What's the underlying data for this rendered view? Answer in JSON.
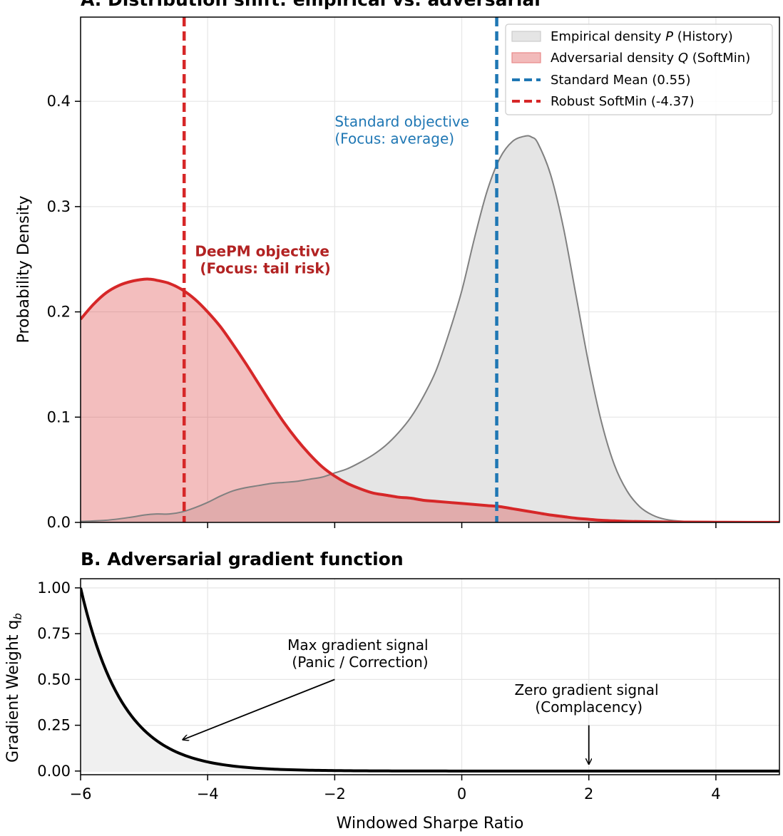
{
  "chart_data": [
    {
      "type": "area",
      "title": "A. Distribution shift: empirical vs. adversarial",
      "xlabel": "",
      "ylabel": "Probability Density",
      "xlim": [
        -6,
        5
      ],
      "ylim": [
        0,
        0.48
      ],
      "x_ticks": [
        -6,
        -4,
        -2,
        0,
        2,
        4
      ],
      "y_ticks": [
        0.0,
        0.1,
        0.2,
        0.3,
        0.4
      ],
      "y_tick_labels": [
        "0.0",
        "0.1",
        "0.2",
        "0.3",
        "0.4"
      ],
      "grid": true,
      "legend_position": "top-right",
      "series": [
        {
          "name": "Empirical density P (History)",
          "legend_parts": [
            "Empirical density ",
            "P",
            " (History)"
          ],
          "color": "#808080",
          "fill": "#e5e5e5",
          "x": [
            -6,
            -5.6,
            -5.2,
            -5.0,
            -4.8,
            -4.6,
            -4.4,
            -4.2,
            -4.0,
            -3.8,
            -3.6,
            -3.4,
            -3.2,
            -3.0,
            -2.8,
            -2.6,
            -2.4,
            -2.2,
            -2.0,
            -1.8,
            -1.6,
            -1.4,
            -1.2,
            -1.0,
            -0.8,
            -0.6,
            -0.4,
            -0.2,
            0.0,
            0.2,
            0.4,
            0.6,
            0.8,
            1.0,
            1.1,
            1.2,
            1.4,
            1.6,
            1.8,
            2.0,
            2.2,
            2.4,
            2.6,
            2.8,
            3.0,
            3.2,
            3.5,
            4.0,
            4.5,
            5.0
          ],
          "values": [
            0.001,
            0.002,
            0.005,
            0.007,
            0.008,
            0.008,
            0.01,
            0.014,
            0.019,
            0.025,
            0.03,
            0.033,
            0.035,
            0.037,
            0.038,
            0.039,
            0.041,
            0.043,
            0.047,
            0.051,
            0.057,
            0.064,
            0.073,
            0.085,
            0.1,
            0.12,
            0.145,
            0.18,
            0.22,
            0.27,
            0.315,
            0.346,
            0.362,
            0.367,
            0.366,
            0.36,
            0.33,
            0.28,
            0.215,
            0.15,
            0.095,
            0.055,
            0.03,
            0.015,
            0.007,
            0.003,
            0.001,
            0.0004,
            0.0002,
            0.0001
          ]
        },
        {
          "name": "Adversarial density Q (SoftMin)",
          "legend_parts": [
            "Adversarial density ",
            "Q",
            " (SoftMin)"
          ],
          "color": "#d62728",
          "fill": "rgba(214,39,40,0.3)",
          "x": [
            -6,
            -5.8,
            -5.6,
            -5.4,
            -5.2,
            -5.0,
            -4.9,
            -4.8,
            -4.6,
            -4.4,
            -4.2,
            -4.0,
            -3.8,
            -3.6,
            -3.4,
            -3.2,
            -3.0,
            -2.8,
            -2.6,
            -2.4,
            -2.2,
            -2.0,
            -1.8,
            -1.6,
            -1.4,
            -1.2,
            -1.0,
            -0.8,
            -0.6,
            -0.4,
            -0.2,
            0.0,
            0.2,
            0.4,
            0.6,
            0.8,
            1.0,
            1.2,
            1.4,
            1.6,
            1.8,
            2.0,
            2.2,
            2.4,
            2.6,
            3.0,
            3.5,
            4.0,
            4.5,
            5.0
          ],
          "values": [
            0.193,
            0.207,
            0.218,
            0.225,
            0.229,
            0.231,
            0.231,
            0.23,
            0.227,
            0.221,
            0.212,
            0.2,
            0.186,
            0.169,
            0.151,
            0.132,
            0.113,
            0.095,
            0.079,
            0.065,
            0.053,
            0.044,
            0.037,
            0.032,
            0.028,
            0.026,
            0.024,
            0.023,
            0.021,
            0.02,
            0.019,
            0.018,
            0.017,
            0.016,
            0.015,
            0.013,
            0.011,
            0.009,
            0.007,
            0.0055,
            0.004,
            0.003,
            0.002,
            0.0015,
            0.001,
            0.0006,
            0.0003,
            0.0002,
            0.0001,
            0.0001
          ]
        }
      ],
      "reference_lines": [
        {
          "name": "Standard Mean (0.55)",
          "x": 0.55,
          "color": "#1f77b4"
        },
        {
          "name": "Robust SoftMin (-4.37)",
          "x": -4.37,
          "color": "#d62728"
        }
      ],
      "annotations": [
        {
          "lines": [
            "Standard objective",
            "(Focus: average)"
          ],
          "x": -2.0,
          "y": 0.376,
          "color": "#1f77b4",
          "bold": false
        },
        {
          "lines": [
            "DeePM objective",
            " (Focus: tail risk)"
          ],
          "x": -4.2,
          "y": 0.253,
          "color": "#b22222",
          "bold": true
        }
      ]
    },
    {
      "type": "line",
      "title": "B. Adversarial gradient function",
      "xlabel": "Windowed Sharpe Ratio",
      "ylabel": "Gradient Weight q",
      "ylabel_sub": "b",
      "xlim": [
        -6,
        5
      ],
      "ylim": [
        -0.02,
        1.05
      ],
      "x_ticks": [
        -6,
        -4,
        -2,
        0,
        2,
        4
      ],
      "x_tick_labels": [
        "−6",
        "−4",
        "−2",
        "0",
        "2",
        "4"
      ],
      "y_ticks": [
        0.0,
        0.25,
        0.5,
        0.75,
        1.0
      ],
      "y_tick_labels": [
        "0.00",
        "0.25",
        "0.50",
        "0.75",
        "1.00"
      ],
      "grid": true,
      "decay_rate": 1.5,
      "series": [
        {
          "name": "Gradient weight",
          "color": "#000000",
          "fill": "#f0f0f0",
          "function": "exp(-1.5*(x+6))"
        }
      ],
      "annotations": [
        {
          "lines": [
            "Max gradient signal",
            "(Panic / Correction)"
          ],
          "text_x": -1.6,
          "text_y": 0.66,
          "arrow_from": [
            -2.0,
            0.5
          ],
          "arrow_to": [
            -4.4,
            0.17
          ]
        },
        {
          "lines": [
            "Zero gradient signal",
            "(Complacency)"
          ],
          "text_x": 2.0,
          "text_y": 0.415,
          "arrow_from": [
            2.0,
            0.25
          ],
          "arrow_to": [
            2.0,
            0.035
          ]
        }
      ]
    }
  ]
}
